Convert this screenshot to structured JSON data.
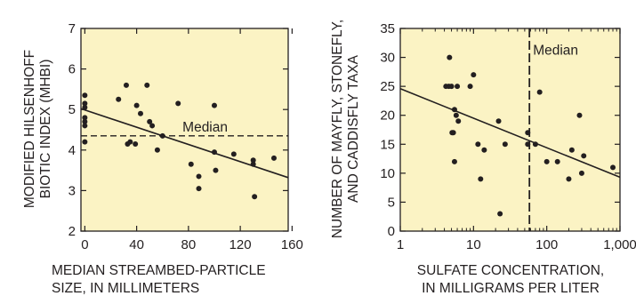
{
  "colors": {
    "plot_background": "#fbf3c4",
    "ink": "#231f20"
  },
  "chart_data": [
    {
      "type": "scatter",
      "xlabel_lines": [
        "MEDIAN STREAMBED-PARTICLE",
        "SIZE, IN MILLIMETERS"
      ],
      "ylabel_lines": [
        "MODIFIED HILSENHOFF",
        "BIOTIC INDEX (MHBI)"
      ],
      "xlim": [
        -3,
        157
      ],
      "ylim": [
        2,
        7
      ],
      "xticks": [
        0,
        40,
        80,
        120,
        160
      ],
      "yticks": [
        2,
        3,
        4,
        5,
        6,
        7
      ],
      "x_scale": "linear",
      "grid": false,
      "points": [
        {
          "x": 0,
          "y": 5.35
        },
        {
          "x": 0,
          "y": 5.15
        },
        {
          "x": 0,
          "y": 5.05
        },
        {
          "x": 0,
          "y": 4.8
        },
        {
          "x": 0,
          "y": 4.7
        },
        {
          "x": 0,
          "y": 4.6
        },
        {
          "x": 0,
          "y": 4.2
        },
        {
          "x": 26,
          "y": 5.25
        },
        {
          "x": 32,
          "y": 5.6
        },
        {
          "x": 33,
          "y": 4.15
        },
        {
          "x": 35,
          "y": 4.2
        },
        {
          "x": 39,
          "y": 4.15
        },
        {
          "x": 40,
          "y": 5.1
        },
        {
          "x": 43,
          "y": 4.9
        },
        {
          "x": 48,
          "y": 5.6
        },
        {
          "x": 50,
          "y": 4.7
        },
        {
          "x": 52,
          "y": 4.6
        },
        {
          "x": 56,
          "y": 4.0
        },
        {
          "x": 60,
          "y": 4.35
        },
        {
          "x": 72,
          "y": 5.15
        },
        {
          "x": 82,
          "y": 3.65
        },
        {
          "x": 88,
          "y": 3.35
        },
        {
          "x": 88,
          "y": 3.05
        },
        {
          "x": 100,
          "y": 3.95
        },
        {
          "x": 100,
          "y": 5.1
        },
        {
          "x": 101,
          "y": 3.5
        },
        {
          "x": 115,
          "y": 3.9
        },
        {
          "x": 130,
          "y": 3.75
        },
        {
          "x": 130,
          "y": 3.65
        },
        {
          "x": 131,
          "y": 2.85
        },
        {
          "x": 146,
          "y": 3.8
        }
      ],
      "trend_line": {
        "x": [
          -3,
          157
        ],
        "y": [
          5.02,
          3.32
        ]
      },
      "reference_line": {
        "orientation": "horizontal",
        "value": 4.35,
        "style": "dashed",
        "label": "Median"
      }
    },
    {
      "type": "scatter",
      "xlabel_lines": [
        "SULFATE CONCENTRATION,",
        "IN MILLIGRAMS PER LITER"
      ],
      "ylabel_lines": [
        "NUMBER OF MAYFLY, STONEFLY,",
        "AND CADDISFLY TAXA"
      ],
      "xlim": [
        1,
        1000
      ],
      "ylim": [
        0,
        35
      ],
      "xticks": [
        1,
        10,
        100,
        1000
      ],
      "xtick_labels": [
        "1",
        "10",
        "100",
        "1,000"
      ],
      "yticks": [
        0,
        5,
        10,
        15,
        20,
        25,
        30,
        35
      ],
      "x_scale": "log",
      "grid": false,
      "points": [
        {
          "x": 4.2,
          "y": 25
        },
        {
          "x": 4.6,
          "y": 25
        },
        {
          "x": 4.7,
          "y": 30
        },
        {
          "x": 5.0,
          "y": 25
        },
        {
          "x": 5.1,
          "y": 17
        },
        {
          "x": 5.3,
          "y": 17
        },
        {
          "x": 5.5,
          "y": 21
        },
        {
          "x": 5.5,
          "y": 12
        },
        {
          "x": 5.8,
          "y": 20
        },
        {
          "x": 6.0,
          "y": 25
        },
        {
          "x": 6.2,
          "y": 19
        },
        {
          "x": 9,
          "y": 25
        },
        {
          "x": 10,
          "y": 27
        },
        {
          "x": 11.5,
          "y": 15
        },
        {
          "x": 12.5,
          "y": 9
        },
        {
          "x": 14,
          "y": 14
        },
        {
          "x": 22,
          "y": 19
        },
        {
          "x": 23,
          "y": 3
        },
        {
          "x": 27,
          "y": 15
        },
        {
          "x": 55,
          "y": 17
        },
        {
          "x": 55,
          "y": 15
        },
        {
          "x": 70,
          "y": 15
        },
        {
          "x": 80,
          "y": 24
        },
        {
          "x": 100,
          "y": 12
        },
        {
          "x": 140,
          "y": 12
        },
        {
          "x": 200,
          "y": 9
        },
        {
          "x": 220,
          "y": 14
        },
        {
          "x": 280,
          "y": 20
        },
        {
          "x": 300,
          "y": 10
        },
        {
          "x": 320,
          "y": 13
        },
        {
          "x": 800,
          "y": 11
        }
      ],
      "trend_line": {
        "x": [
          1,
          1000
        ],
        "y": [
          24.6,
          9.3
        ]
      },
      "reference_line": {
        "orientation": "vertical",
        "value": 58,
        "style": "dashed",
        "label": "Median"
      }
    }
  ]
}
